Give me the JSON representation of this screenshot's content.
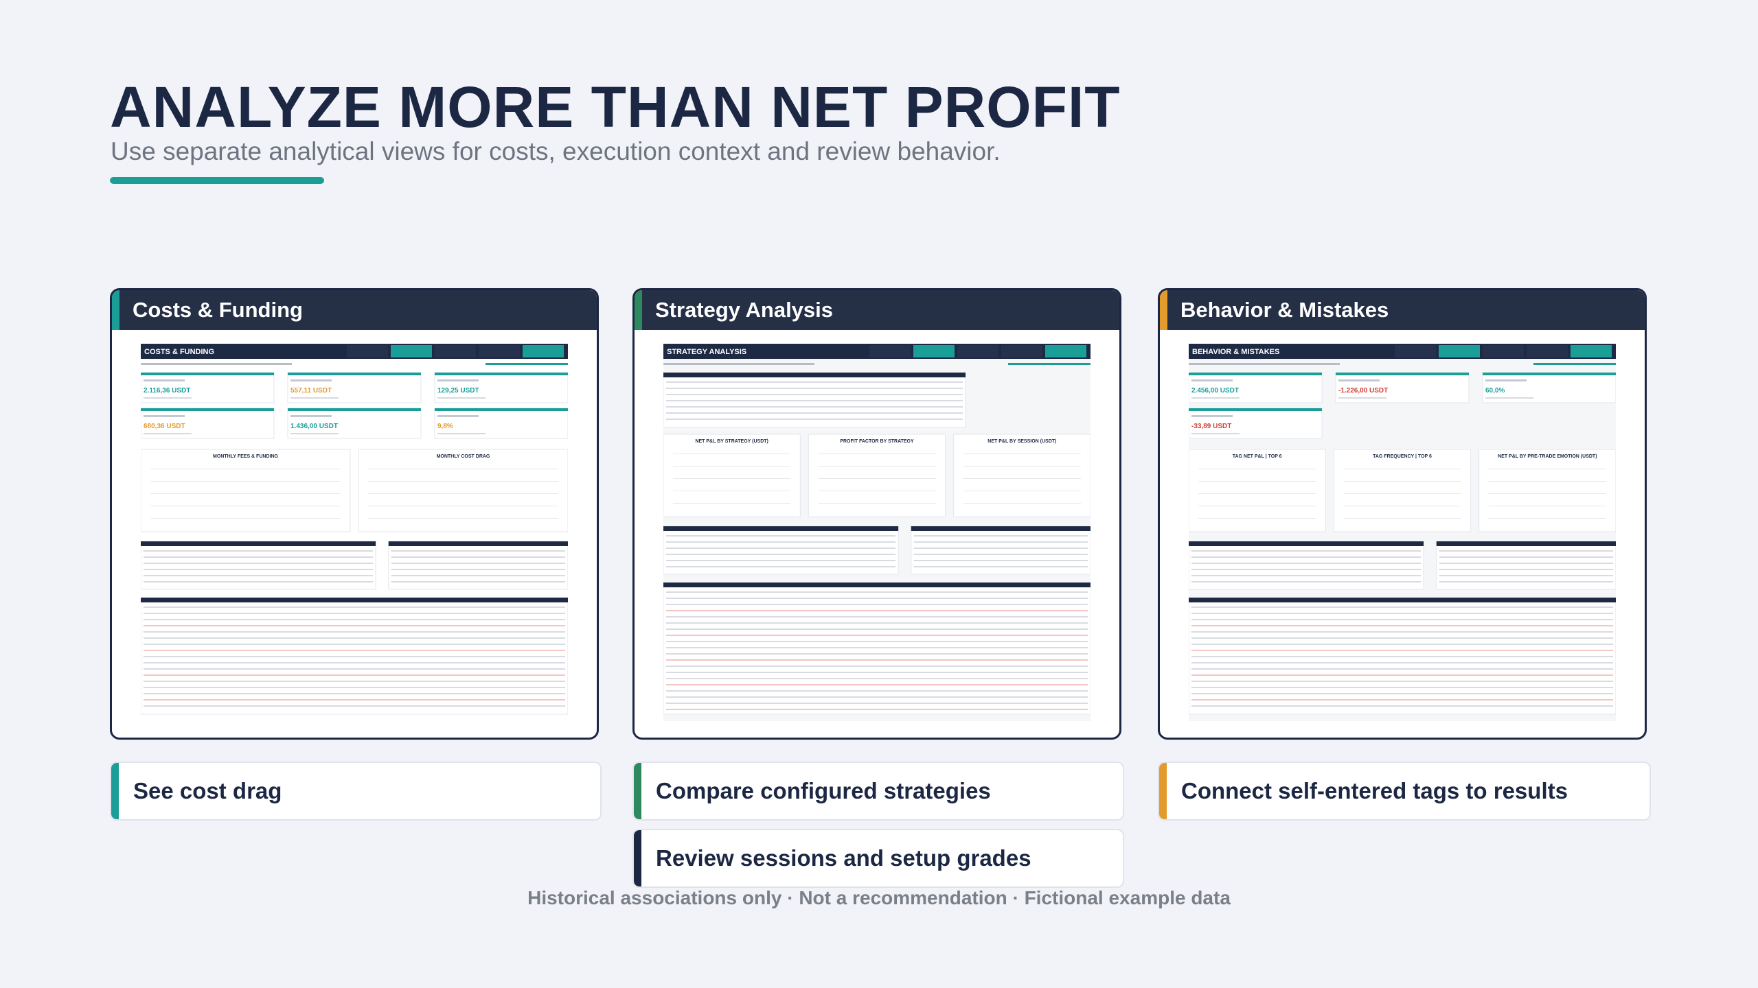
{
  "header": {
    "title": "ANALYZE MORE THAN NET PROFIT",
    "subtitle": "Use separate analytical views for costs, execution context and review behavior."
  },
  "cards": [
    {
      "title": "Costs & Funding",
      "sheet_title": "COSTS & FUNDING",
      "kpis": [
        "2.116,36 USDT",
        "557,11 USDT",
        "129,25 USDT",
        "680,36 USDT",
        "1.436,00 USDT",
        "9,8%"
      ],
      "charts": [
        "MONTHLY FEES & FUNDING",
        "MONTHLY COST DRAG"
      ],
      "captions": [
        "See cost drag"
      ]
    },
    {
      "title": "Strategy Analysis",
      "sheet_title": "STRATEGY ANALYSIS",
      "kpis": [],
      "charts": [
        "NET P&L BY STRATEGY (USDT)",
        "PROFIT FACTOR BY STRATEGY",
        "NET P&L BY SESSION (USDT)"
      ],
      "captions": [
        "Compare configured strategies",
        "Review sessions and setup grades"
      ]
    },
    {
      "title": "Behavior & Mistakes",
      "sheet_title": "BEHAVIOR & MISTAKES",
      "kpis": [
        "2.456,00 USDT",
        "-1.226,00 USDT",
        "60,0%",
        "-33,89 USDT"
      ],
      "charts": [
        "TAG NET P&L | TOP 6",
        "TAG FREQUENCY | TOP 6",
        "NET P&L BY PRE-TRADE EMOTION (USDT)"
      ],
      "captions": [
        "Connect self-entered tags to results"
      ]
    }
  ],
  "footer": "Historical associations only · Not a recommendation · Fictional example data"
}
